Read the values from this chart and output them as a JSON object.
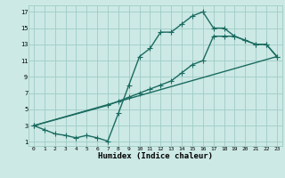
{
  "xlabel": "Humidex (Indice chaleur)",
  "bg_color": "#cce9e5",
  "grid_color": "#9fccc7",
  "line_color": "#1a6b60",
  "xlim": [
    -0.5,
    23.5
  ],
  "ylim": [
    0.5,
    17.8
  ],
  "xticks": [
    0,
    1,
    2,
    3,
    4,
    5,
    6,
    7,
    8,
    9,
    10,
    11,
    12,
    13,
    14,
    15,
    16,
    17,
    18,
    19,
    20,
    21,
    22,
    23
  ],
  "yticks": [
    1,
    3,
    5,
    7,
    9,
    11,
    13,
    15,
    17
  ],
  "line1_x": [
    0,
    1,
    2,
    3,
    4,
    5,
    6,
    7,
    8,
    9,
    10,
    11,
    12,
    13,
    14,
    15,
    16,
    17,
    18,
    19,
    20,
    21,
    22,
    23
  ],
  "line1_y": [
    3,
    2.5,
    2.0,
    1.8,
    1.5,
    1.8,
    1.5,
    1.1,
    4.5,
    8.0,
    11.5,
    12.5,
    14.5,
    14.5,
    15.5,
    16.5,
    17.0,
    15.0,
    15.0,
    14.0,
    13.5,
    13.0,
    13.0,
    11.5
  ],
  "line2_x": [
    0,
    7,
    8,
    9,
    10,
    11,
    12,
    13,
    14,
    15,
    16,
    17,
    18,
    19,
    20,
    21,
    22,
    23
  ],
  "line2_y": [
    3,
    5.5,
    6.0,
    6.5,
    7.0,
    7.5,
    8.0,
    8.5,
    9.5,
    10.5,
    11.0,
    14.0,
    14.0,
    14.0,
    13.5,
    13.0,
    13.0,
    11.5
  ],
  "line3_x": [
    0,
    23
  ],
  "line3_y": [
    3,
    11.5
  ],
  "marker": "+",
  "marker_size": 4,
  "linewidth": 1.0
}
